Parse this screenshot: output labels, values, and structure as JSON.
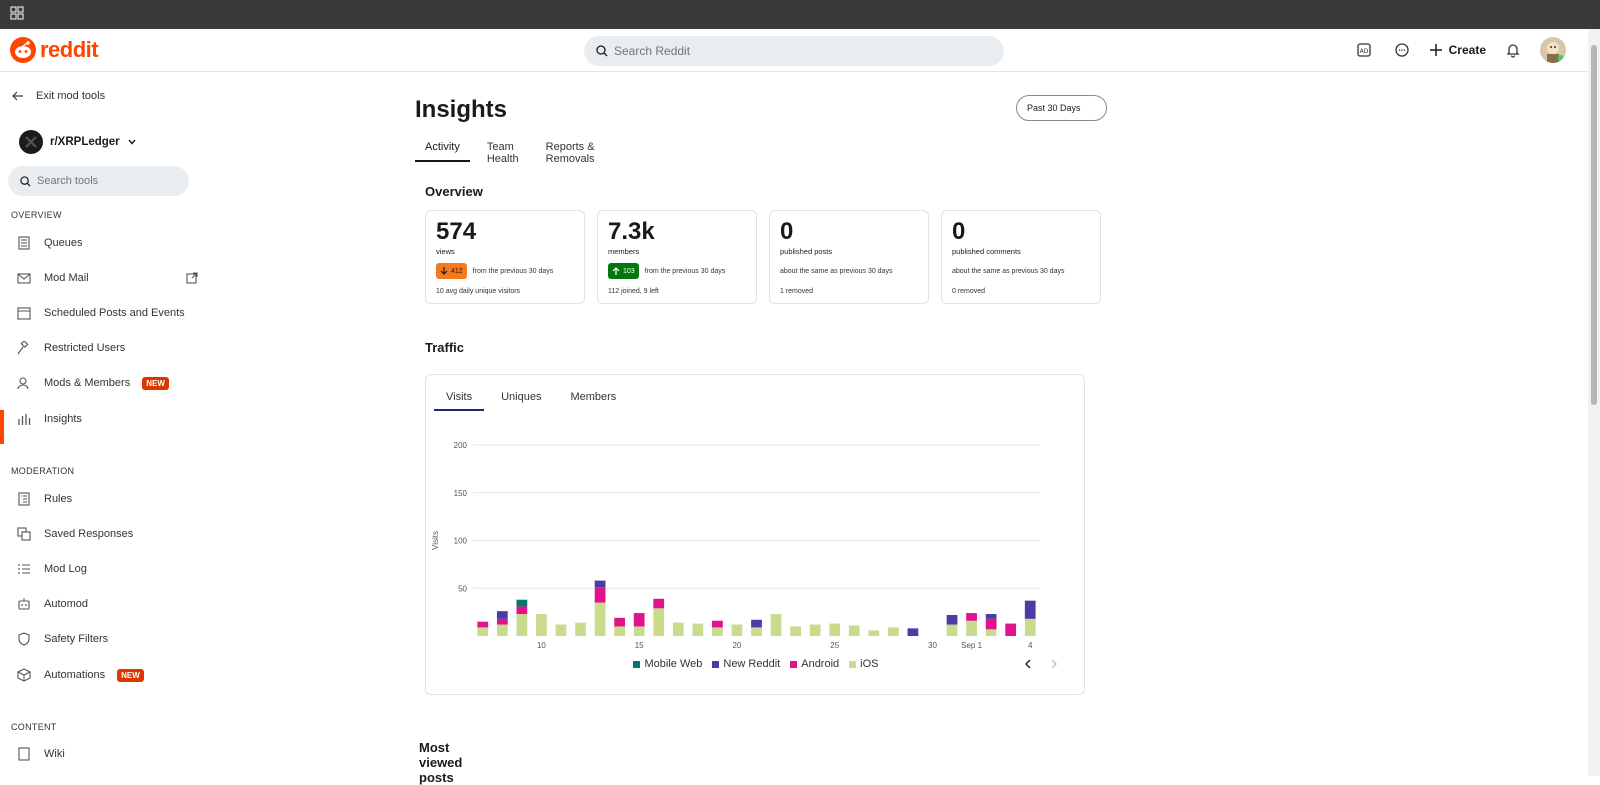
{
  "topbar": {
    "brand": "reddit",
    "search_placeholder": "Search Reddit",
    "create_label": "Create"
  },
  "sidebar": {
    "exit_label": "Exit mod tools",
    "subreddit": "r/XRPLedger",
    "search_placeholder": "Search tools",
    "sections": {
      "overview": "OVERVIEW",
      "moderation": "MODERATION",
      "content": "CONTENT"
    },
    "items": {
      "queues": "Queues",
      "modmail": "Mod Mail",
      "scheduled": "Scheduled Posts and Events",
      "restricted": "Restricted Users",
      "mods": "Mods & Members",
      "insights": "Insights",
      "rules": "Rules",
      "saved": "Saved Responses",
      "modlog": "Mod Log",
      "automod": "Automod",
      "safety": "Safety Filters",
      "automations": "Automations",
      "wiki": "Wiki"
    },
    "new_badge": "NEW"
  },
  "main": {
    "title": "Insights",
    "range": "Past 30 Days",
    "tabs": [
      "Activity",
      "Team Health",
      "Reports & Removals"
    ],
    "overview_heading": "Overview",
    "traffic_heading": "Traffic",
    "most_viewed_heading": "Most viewed posts",
    "cards": [
      {
        "value": "574",
        "label": "views",
        "delta": "412",
        "delta_note": "from the previous 30 days",
        "foot": "10 avg daily unique visitors"
      },
      {
        "value": "7.3k",
        "label": "members",
        "delta": "103",
        "delta_note": "from the previous 30 days",
        "foot": "112 joined, 9 left"
      },
      {
        "value": "0",
        "label": "published posts",
        "note": "about the same as previous 30 days",
        "foot": "1 removed"
      },
      {
        "value": "0",
        "label": "published comments",
        "note": "about the same as previous 30 days",
        "foot": "0 removed"
      }
    ],
    "traffic_tabs": [
      "Visits",
      "Uniques",
      "Members"
    ]
  },
  "colors": {
    "mobile_web": "#00796b",
    "new_reddit": "#4b3ca4",
    "android": "#e0138c",
    "ios": "#c9dc8e"
  },
  "chart_data": {
    "type": "bar",
    "stacked": true,
    "ylabel": "Visits",
    "ylim": [
      0,
      200
    ],
    "yticks": [
      50,
      100,
      150,
      200
    ],
    "x": [
      7,
      8,
      9,
      10,
      11,
      12,
      13,
      14,
      15,
      16,
      17,
      18,
      19,
      20,
      21,
      22,
      23,
      24,
      25,
      26,
      27,
      28,
      29,
      30,
      31,
      "Sep 1",
      2,
      3,
      4
    ],
    "xtick_labels": [
      {
        "x": 10,
        "label": "10"
      },
      {
        "x": 15,
        "label": "15"
      },
      {
        "x": 20,
        "label": "20"
      },
      {
        "x": 25,
        "label": "25"
      },
      {
        "x": 30,
        "label": "30"
      },
      {
        "x": "Sep 1",
        "label": "Sep 1"
      },
      {
        "x": 4,
        "label": "4"
      }
    ],
    "series": [
      {
        "name": "iOS",
        "values": [
          9,
          12,
          23,
          23,
          12,
          14,
          35,
          10,
          10,
          29,
          14,
          13,
          9,
          12,
          9,
          23,
          10,
          12,
          13,
          11,
          6,
          9,
          0,
          0,
          12,
          16,
          7,
          0,
          18
        ]
      },
      {
        "name": "Android",
        "values": [
          6,
          6,
          8,
          0,
          0,
          0,
          16,
          9,
          14,
          10,
          0,
          0,
          7,
          0,
          0,
          0,
          0,
          0,
          0,
          0,
          0,
          0,
          0,
          0,
          0,
          8,
          11,
          13,
          0
        ]
      },
      {
        "name": "New Reddit",
        "values": [
          0,
          8,
          0,
          0,
          0,
          0,
          7,
          0,
          0,
          0,
          0,
          0,
          0,
          0,
          8,
          0,
          0,
          0,
          0,
          0,
          0,
          0,
          8,
          0,
          10,
          0,
          5,
          0,
          19
        ]
      },
      {
        "name": "Mobile Web",
        "values": [
          0,
          0,
          7,
          0,
          0,
          0,
          0,
          0,
          0,
          0,
          0,
          0,
          0,
          0,
          0,
          0,
          0,
          0,
          0,
          0,
          0,
          0,
          0,
          0,
          0,
          0,
          0,
          0,
          0
        ]
      }
    ],
    "legend": [
      "Mobile Web",
      "New Reddit",
      "Android",
      "iOS"
    ],
    "legend_position": "bottom",
    "grid": true
  }
}
